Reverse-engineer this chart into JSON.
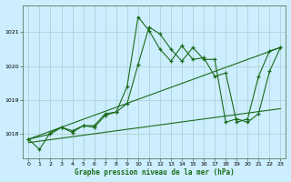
{
  "title": "Graphe pression niveau de la mer (hPa)",
  "bg_color": "#cceeff",
  "grid_color": "#aacccc",
  "line_color": "#1a6b1a",
  "xlim": [
    -0.5,
    23.5
  ],
  "ylim": [
    1017.3,
    1021.8
  ],
  "yticks": [
    1018,
    1019,
    1020,
    1021
  ],
  "xticks": [
    0,
    1,
    2,
    3,
    4,
    5,
    6,
    7,
    8,
    9,
    10,
    11,
    12,
    13,
    14,
    15,
    16,
    17,
    18,
    19,
    20,
    21,
    22,
    23
  ],
  "trend1": {
    "x": [
      0,
      23
    ],
    "y": [
      1017.85,
      1020.55
    ]
  },
  "trend2": {
    "x": [
      0,
      23
    ],
    "y": [
      1017.75,
      1018.75
    ]
  },
  "series_jagged1": {
    "x": [
      0,
      1,
      2,
      3,
      4,
      5,
      6,
      7,
      8,
      9,
      10,
      11,
      12,
      13,
      14,
      15,
      16,
      17,
      18,
      19,
      20,
      21,
      22,
      23
    ],
    "y": [
      1017.85,
      1017.55,
      1018.05,
      1018.2,
      1018.1,
      1018.25,
      1018.25,
      1018.6,
      1018.65,
      1019.4,
      1021.45,
      1021.05,
      1020.5,
      1020.15,
      1020.6,
      1020.2,
      1020.25,
      1019.7,
      1019.8,
      1018.35,
      1018.45,
      1019.7,
      1020.45,
      1020.55
    ]
  },
  "series_jagged2": {
    "x": [
      0,
      2,
      3,
      4,
      5,
      6,
      7,
      8,
      9,
      10,
      11,
      12,
      13,
      14,
      15,
      16,
      17,
      18,
      19,
      20,
      21,
      22,
      23
    ],
    "y": [
      1017.85,
      1018.0,
      1018.2,
      1018.05,
      1018.25,
      1018.2,
      1018.55,
      1018.65,
      1018.9,
      1020.05,
      1021.15,
      1020.95,
      1020.5,
      1020.15,
      1020.55,
      1020.2,
      1020.2,
      1018.35,
      1018.45,
      1018.35,
      1018.6,
      1019.85,
      1020.55
    ]
  }
}
